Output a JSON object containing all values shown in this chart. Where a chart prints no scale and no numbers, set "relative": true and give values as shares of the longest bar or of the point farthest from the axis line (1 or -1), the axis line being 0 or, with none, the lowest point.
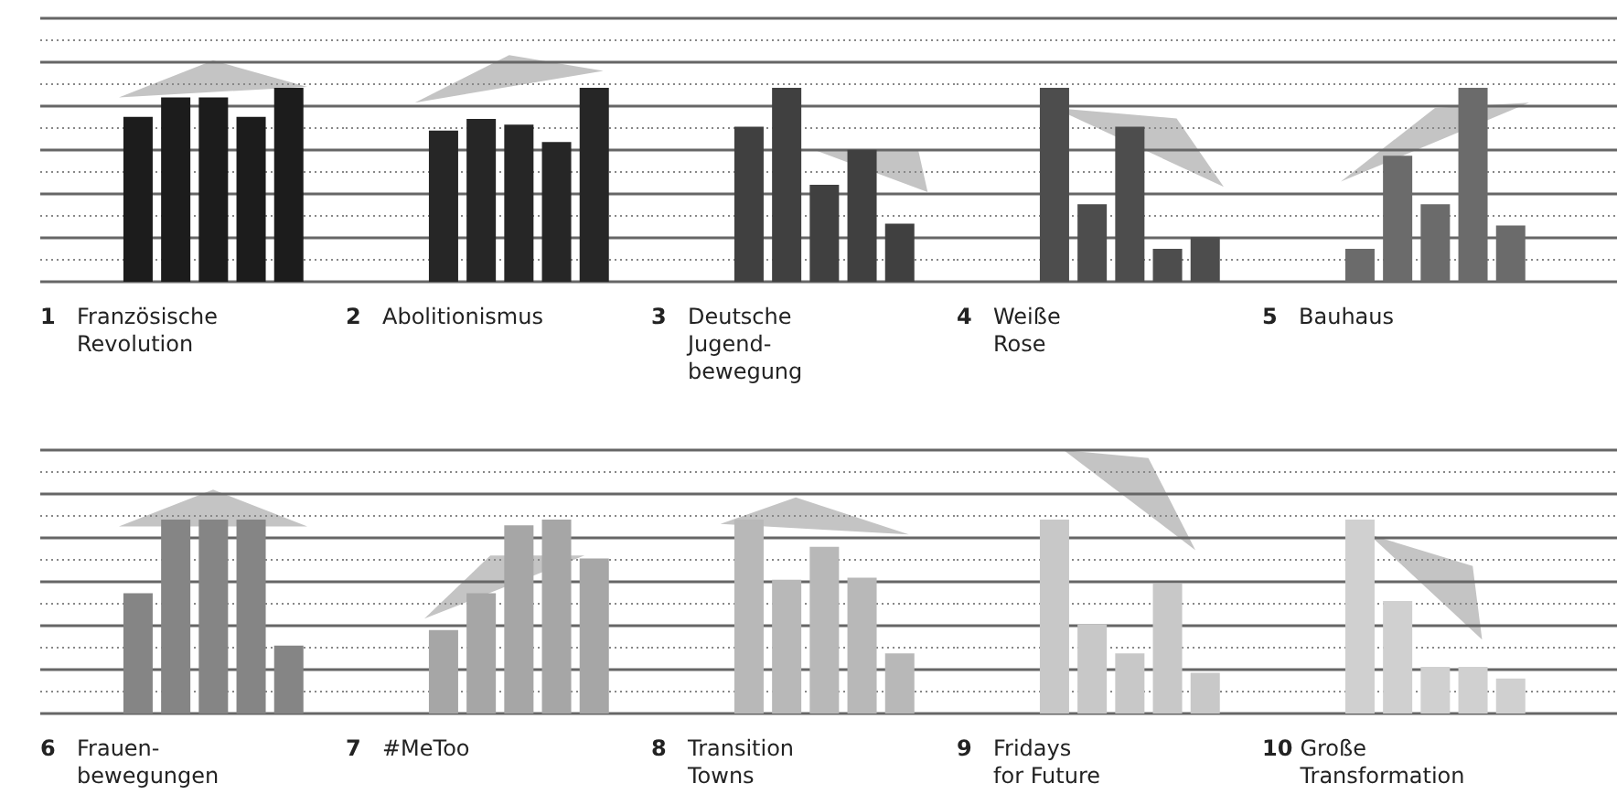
{
  "chart_data": [
    {
      "type": "bar",
      "title": "1 Französische\nRevolution",
      "categories": [
        null,
        null,
        null,
        null,
        null
      ],
      "values": [
        0.85,
        0.95,
        0.95,
        0.85,
        1
      ],
      "color": "#1c1c1c",
      "relative": true,
      "grid": true
    },
    {
      "type": "bar",
      "title": "2 Abolitionismus",
      "categories": [
        null,
        null,
        null,
        null,
        null
      ],
      "values": [
        0.78,
        0.84,
        0.81,
        0.72,
        1
      ],
      "color": "#262626",
      "relative": true,
      "grid": true
    },
    {
      "type": "bar",
      "title": "3 Deutsche\nJugend-\nbewegung",
      "categories": [
        null,
        null,
        null,
        null,
        null
      ],
      "values": [
        0.8,
        1,
        0.5,
        0.68,
        0.3
      ],
      "color": "#404040",
      "relative": true,
      "grid": true
    },
    {
      "type": "bar",
      "title": "4 Weiße\nRose",
      "categories": [
        null,
        null,
        null,
        null,
        null
      ],
      "values": [
        1,
        0.4,
        0.8,
        0.17,
        0.23
      ],
      "color": "#4d4d4d",
      "relative": true,
      "grid": true
    },
    {
      "type": "bar",
      "title": "5 Bauhaus",
      "categories": [
        null,
        null,
        null,
        null,
        null
      ],
      "values": [
        0.17,
        0.65,
        0.4,
        1,
        0.29
      ],
      "color": "#6b6b6b",
      "relative": true,
      "grid": true
    },
    {
      "type": "bar",
      "title": "6 Frauen-\nbewegungen",
      "categories": [
        null,
        null,
        null,
        null,
        null
      ],
      "values": [
        0.62,
        1,
        1,
        1,
        0.35
      ],
      "color": "#858585",
      "relative": true,
      "grid": true
    },
    {
      "type": "bar",
      "title": "7 #MeToo",
      "categories": [
        null,
        null,
        null,
        null,
        null
      ],
      "values": [
        0.43,
        0.62,
        0.97,
        1,
        0.8
      ],
      "color": "#a6a6a6",
      "relative": true,
      "grid": true
    },
    {
      "type": "bar",
      "title": "8 Transition\nTowns",
      "categories": [
        null,
        null,
        null,
        null,
        null
      ],
      "values": [
        1,
        0.69,
        0.86,
        0.7,
        0.31
      ],
      "color": "#b8b8b8",
      "relative": true,
      "grid": true
    },
    {
      "type": "bar",
      "title": "9 Fridays\nfor Future",
      "categories": [
        null,
        null,
        null,
        null,
        null
      ],
      "values": [
        1,
        0.46,
        0.31,
        0.67,
        0.21
      ],
      "color": "#c8c8c8",
      "relative": true,
      "grid": true
    },
    {
      "type": "bar",
      "title": "10 Große\nTransformation",
      "categories": [
        null,
        null,
        null,
        null,
        null
      ],
      "values": [
        1,
        0.58,
        0.24,
        0.24,
        0.18
      ],
      "color": "#d0d0d0",
      "relative": true,
      "grid": true
    }
  ]
}
